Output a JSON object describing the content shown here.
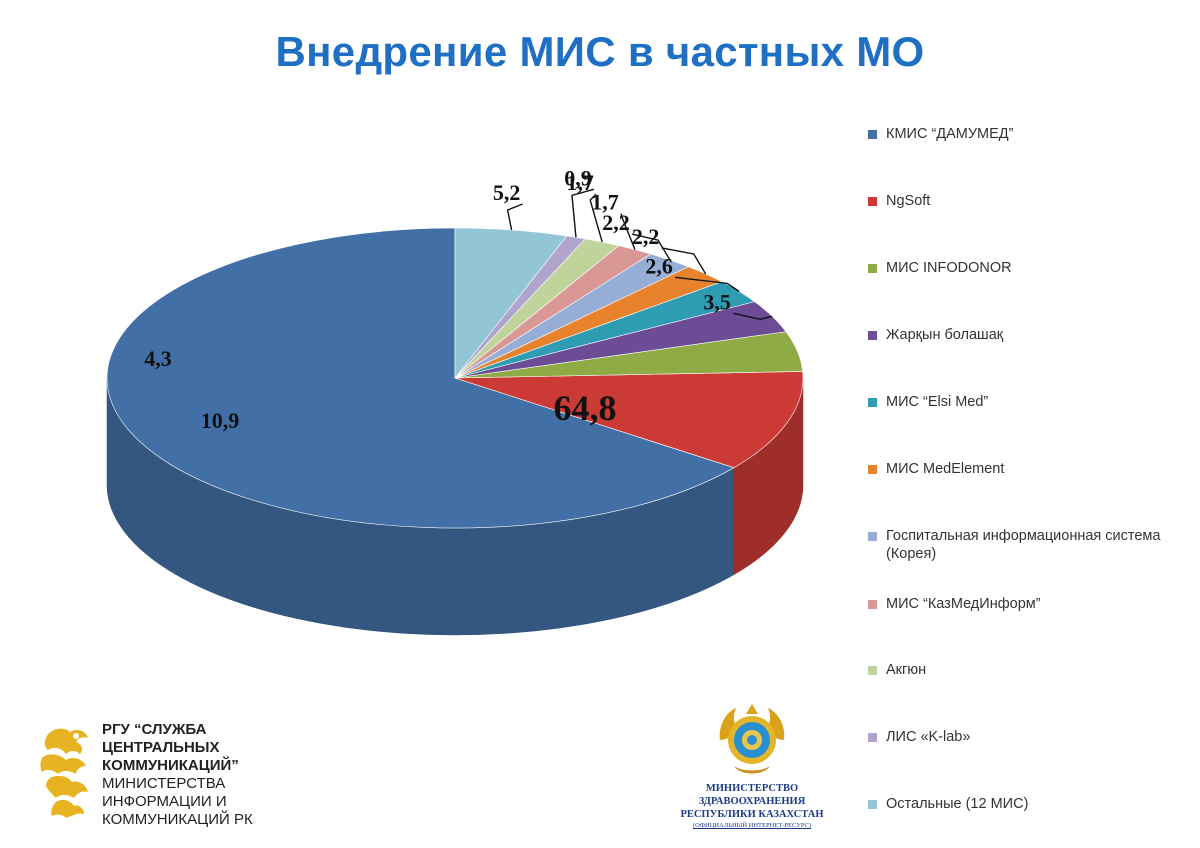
{
  "title": "Внедрение МИС в частных МО",
  "chart_data": {
    "type": "pie",
    "title": "Внедрение МИС в частных МО",
    "three_d": true,
    "legend_position": "right",
    "series": [
      {
        "name": "КМИС “ДАМУМЕД”",
        "label": "64,8",
        "value": 64.8,
        "color": "#4270a6"
      },
      {
        "name": "NgSoft",
        "label": "10,9",
        "value": 10.9,
        "color": "#cc3a36"
      },
      {
        "name": "МИС INFODONOR",
        "label": "4,3",
        "value": 4.3,
        "color": "#8eab46"
      },
      {
        "name": "Жарқын болашақ",
        "label": "3,5",
        "value": 3.5,
        "color": "#6d4c96"
      },
      {
        "name": "МИС “Elsi Med”",
        "label": "2,6",
        "value": 2.6,
        "color": "#2e9cb3"
      },
      {
        "name": "МИС MedElement",
        "label": "2,2",
        "value": 2.2,
        "color": "#e8822c"
      },
      {
        "name": "Госпитальная информационная система (Корея)",
        "label": "2,2",
        "value": 2.2,
        "color": "#96aed6"
      },
      {
        "name": "МИС “КазМедИнформ”",
        "label": "1,7",
        "value": 1.7,
        "color": "#d99796"
      },
      {
        "name": "Акгюн",
        "label": "1,7",
        "value": 1.7,
        "color": "#bed49a"
      },
      {
        "name": "ЛИС «K-lab»",
        "label": "0,9",
        "value": 0.9,
        "color": "#b0a4cd"
      },
      {
        "name": "Остальные (12 МИС)",
        "label": "5,2",
        "value": 5.2,
        "color": "#92c5d6"
      }
    ]
  },
  "footer": {
    "org_bold_lines": [
      "РГУ “СЛУЖБА",
      "ЦЕНТРАЛЬНЫХ",
      "КОММУНИКАЦИЙ”"
    ],
    "org_regular_lines": [
      "МИНИСТЕРСТВА",
      "ИНФОРМАЦИИ И",
      "КОММУНИКАЦИЙ РК"
    ],
    "ministry_lines": [
      "МИНИСТЕРСТВО",
      "ЗДРАВООХРАНЕНИЯ",
      "РЕСПУБЛИКИ КАЗАХСТАН"
    ],
    "ministry_sub": "(ОФИЦИАЛЬНЫЙ ИНТЕРНЕТ-РЕСУРС)"
  },
  "colors": {
    "title": "#1f6fc4",
    "logo_gold": "#e8b320",
    "ministry_blue": "#1d3b8a"
  },
  "icons": {
    "left_logo": "golden-snow-leopard-logo",
    "center_logo": "kazakhstan-state-emblem"
  }
}
